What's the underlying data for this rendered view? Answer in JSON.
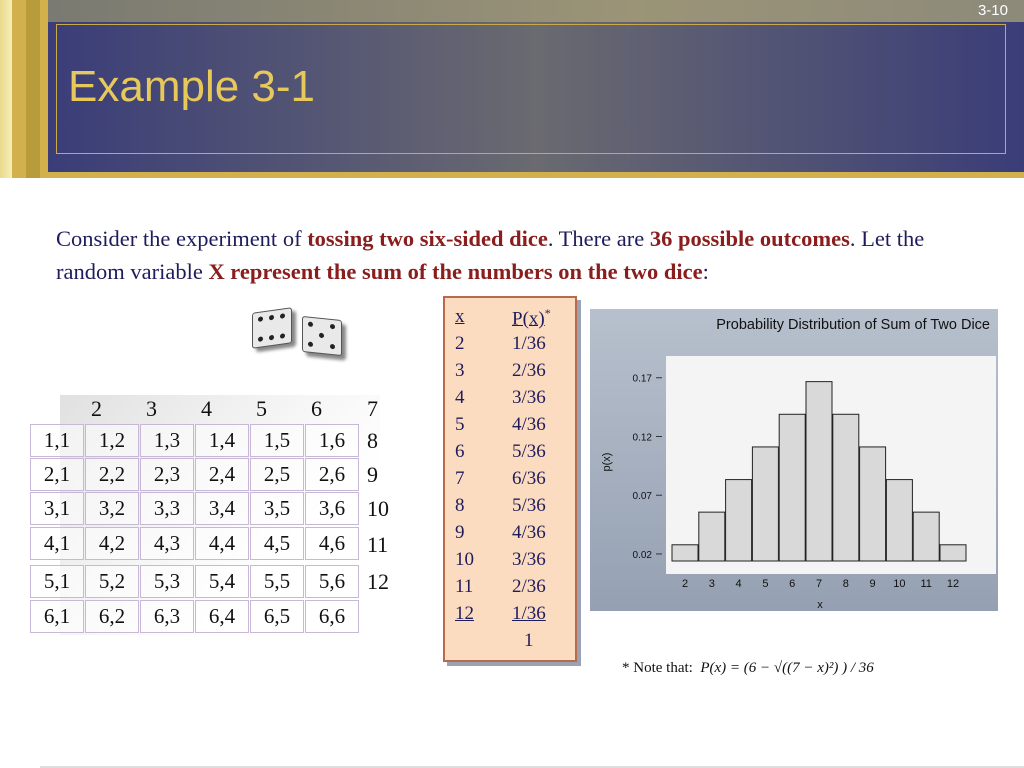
{
  "slide": {
    "number": "3-10",
    "title": "Example 3-1"
  },
  "intro": {
    "t1": "Consider the experiment of ",
    "t2": "tossing two six-sided dice",
    "t3": ".  There are ",
    "t4": "36 possible outcomes",
    "t5": ".  Let the random variable ",
    "t6": "X represent the sum of the numbers on the two dice",
    "t7": ":"
  },
  "grid": {
    "col_headers": [
      "2",
      "3",
      "4",
      "5",
      "6",
      "7"
    ],
    "rows": [
      {
        "cells": [
          "1,1",
          "1,2",
          "1,3",
          "1,4",
          "1,5",
          "1,6"
        ],
        "sum": "8"
      },
      {
        "cells": [
          "2,1",
          "2,2",
          "2,3",
          "2,4",
          "2,5",
          "2,6"
        ],
        "sum": "9"
      },
      {
        "cells": [
          "3,1",
          "3,2",
          "3,3",
          "3,4",
          "3,5",
          "3,6"
        ],
        "sum": "10"
      },
      {
        "cells": [
          "4,1",
          "4,2",
          "4,3",
          "4,4",
          "4,5",
          "4,6"
        ],
        "sum": "11"
      },
      {
        "cells": [
          "5,1",
          "5,2",
          "5,3",
          "5,4",
          "5,5",
          "5,6"
        ],
        "sum": "12"
      },
      {
        "cells": [
          "6,1",
          "6,2",
          "6,3",
          "6,4",
          "6,5",
          "6,6"
        ],
        "sum": ""
      }
    ]
  },
  "pmf": {
    "header_x": "x",
    "header_p": "P(x)",
    "header_star": "*",
    "rows": [
      [
        "2",
        "1/36"
      ],
      [
        "3",
        "2/36"
      ],
      [
        "4",
        "3/36"
      ],
      [
        "5",
        "4/36"
      ],
      [
        "6",
        "5/36"
      ],
      [
        "7",
        "6/36"
      ],
      [
        "8",
        "5/36"
      ],
      [
        "9",
        "4/36"
      ],
      [
        "10",
        "3/36"
      ],
      [
        "11",
        "2/36"
      ],
      [
        "12",
        "1/36"
      ]
    ],
    "total": "1"
  },
  "chart_data": {
    "type": "bar",
    "title": "Probability Distribution of Sum of Two Dice",
    "xlabel": "x",
    "ylabel": "p(x)",
    "categories": [
      "2",
      "3",
      "4",
      "5",
      "6",
      "7",
      "8",
      "9",
      "10",
      "11",
      "12"
    ],
    "values": [
      0.0278,
      0.0556,
      0.0833,
      0.1111,
      0.1389,
      0.1667,
      0.1389,
      0.1111,
      0.0833,
      0.0556,
      0.0278
    ],
    "yticks": [
      "0.02",
      "0.07",
      "0.12",
      "0.17"
    ],
    "ylim": [
      0.014,
      0.18
    ]
  },
  "note": {
    "prefix": "* Note that:",
    "formula": "P(x) = (6 − √((7 − x)²) ) / 36"
  },
  "colors": {
    "title": "#e6c95a",
    "text": "#1f1c5c",
    "emphasis": "#8a1d1d",
    "pmf_bg": "#fbdcc0",
    "bar_fill": "#d9d9d9"
  }
}
